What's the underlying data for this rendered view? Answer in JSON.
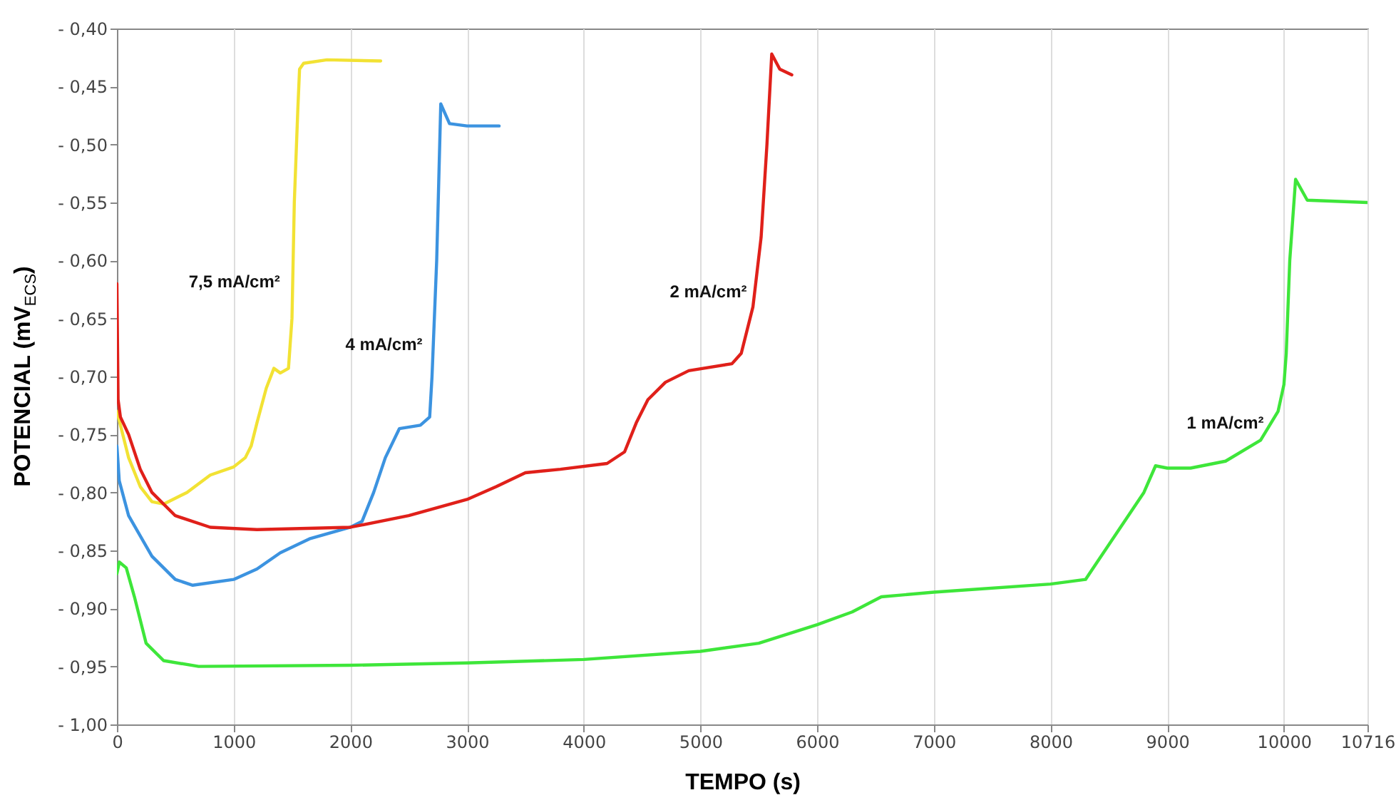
{
  "chart_data": {
    "type": "line",
    "xlabel": "TEMPO (s)",
    "ylabel": "POTENCIAL (mV$_{ECS}$)",
    "xlim": [
      0,
      10716
    ],
    "xticks": [
      0,
      1000,
      2000,
      3000,
      4000,
      5000,
      6000,
      7000,
      8000,
      9000,
      10000,
      10716
    ],
    "ylim": [
      -1.0,
      -0.4
    ],
    "yticks": [
      {
        "value": -1.0,
        "label": "- 1,00"
      },
      {
        "value": -0.95,
        "label": "- 0,95"
      },
      {
        "value": -0.9,
        "label": "- 0,90"
      },
      {
        "value": -0.85,
        "label": "- 0,85"
      },
      {
        "value": -0.8,
        "label": "- 0,80"
      },
      {
        "value": -0.75,
        "label": "- 0,75"
      },
      {
        "value": -0.7,
        "label": "- 0,70"
      },
      {
        "value": -0.65,
        "label": "- 0,65"
      },
      {
        "value": -0.6,
        "label": "- 0,60"
      },
      {
        "value": -0.55,
        "label": "- 0,55"
      },
      {
        "value": -0.5,
        "label": "- 0,50"
      },
      {
        "value": -0.45,
        "label": "- 0,45"
      },
      {
        "value": -0.4,
        "label": "- 0,40"
      }
    ],
    "grid": "x",
    "legend": false,
    "marker": "none",
    "line_style": "solid",
    "series": [
      {
        "name": "7,5 mA/cm²",
        "color": "#f2e234",
        "x": [
          0,
          100,
          200,
          300,
          400,
          600,
          800,
          1000,
          1100,
          1150,
          1200,
          1280,
          1345,
          1400,
          1470,
          1500,
          1520,
          1550,
          1565,
          1600,
          1800,
          2260
        ],
        "values": [
          -0.73,
          -0.77,
          -0.795,
          -0.808,
          -0.81,
          -0.8,
          -0.785,
          -0.778,
          -0.77,
          -0.76,
          -0.74,
          -0.71,
          -0.693,
          -0.697,
          -0.693,
          -0.65,
          -0.55,
          -0.47,
          -0.435,
          -0.43,
          -0.427,
          -0.428
        ]
      },
      {
        "name": "4 mA/cm²",
        "color": "#3c93e0",
        "x": [
          0,
          20,
          100,
          300,
          500,
          650,
          1000,
          1200,
          1400,
          1650,
          2000,
          2100,
          2200,
          2300,
          2420,
          2600,
          2680,
          2700,
          2740,
          2775,
          2850,
          3000,
          3275
        ],
        "values": [
          -0.76,
          -0.79,
          -0.82,
          -0.855,
          -0.875,
          -0.88,
          -0.875,
          -0.866,
          -0.852,
          -0.84,
          -0.83,
          -0.825,
          -0.8,
          -0.77,
          -0.745,
          -0.742,
          -0.735,
          -0.7,
          -0.6,
          -0.465,
          -0.482,
          -0.484,
          -0.484
        ]
      },
      {
        "name": "2 mA/cm²",
        "color": "#e0201a",
        "x": [
          0,
          10,
          30,
          100,
          200,
          300,
          500,
          800,
          1200,
          2000,
          2500,
          3000,
          3250,
          3500,
          3800,
          4200,
          4350,
          4450,
          4550,
          4700,
          4900,
          5270,
          5350,
          5450,
          5520,
          5570,
          5611,
          5680,
          5783
        ],
        "values": [
          -0.62,
          -0.72,
          -0.735,
          -0.75,
          -0.78,
          -0.8,
          -0.82,
          -0.83,
          -0.832,
          -0.83,
          -0.82,
          -0.806,
          -0.795,
          -0.783,
          -0.78,
          -0.775,
          -0.765,
          -0.74,
          -0.72,
          -0.705,
          -0.695,
          -0.689,
          -0.68,
          -0.64,
          -0.58,
          -0.5,
          -0.422,
          -0.435,
          -0.44
        ]
      },
      {
        "name": "1 mA/cm²",
        "color": "#3ee63a",
        "x": [
          0,
          20,
          80,
          150,
          250,
          400,
          700,
          2000,
          3000,
          4000,
          5000,
          5500,
          6000,
          6300,
          6550,
          7000,
          8000,
          8300,
          8400,
          8600,
          8800,
          8900,
          9000,
          9200,
          9500,
          9800,
          9950,
          10000,
          10020,
          10050,
          10100,
          10200,
          10716
        ],
        "values": [
          -0.87,
          -0.86,
          -0.865,
          -0.89,
          -0.93,
          -0.945,
          -0.95,
          -0.949,
          -0.947,
          -0.944,
          -0.937,
          -0.93,
          -0.914,
          -0.903,
          -0.89,
          -0.886,
          -0.879,
          -0.875,
          -0.86,
          -0.83,
          -0.8,
          -0.777,
          -0.779,
          -0.779,
          -0.773,
          -0.755,
          -0.73,
          -0.707,
          -0.68,
          -0.6,
          -0.53,
          -0.548,
          -0.55
        ]
      }
    ]
  }
}
